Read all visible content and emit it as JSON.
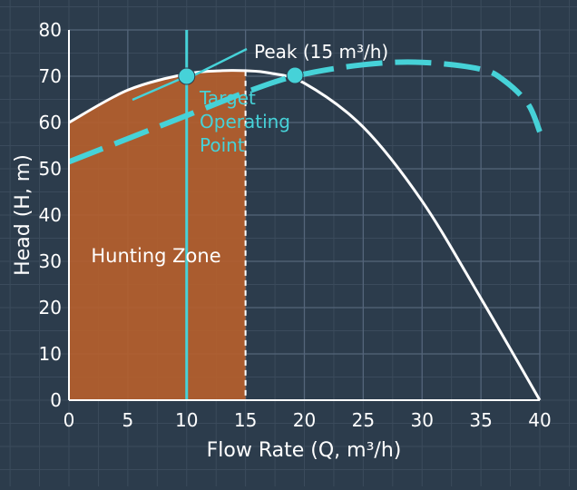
{
  "chart_data": {
    "type": "line",
    "xlabel": "Flow Rate (Q, m³/h)",
    "ylabel": "Head (H, m)",
    "xlim": [
      0,
      40
    ],
    "ylim": [
      0,
      80
    ],
    "x_ticks": [
      0,
      5,
      10,
      15,
      20,
      25,
      30,
      35,
      40
    ],
    "y_ticks": [
      0,
      10,
      20,
      30,
      40,
      50,
      60,
      70,
      80
    ],
    "grid": true,
    "colors": {
      "background": "#2c3c4c",
      "grid_major": "#54657a",
      "grid_minor": "#3b4b5c",
      "pump_curve": "#ffffff",
      "system_curve": "#46d2d8",
      "zone_fill": "#b5602c",
      "target_line": "#46d2d8"
    },
    "series": [
      {
        "style": "solid",
        "x": [
          0,
          5,
          10,
          13,
          15,
          17,
          20,
          25,
          30,
          35,
          40
        ],
        "y": [
          60,
          67,
          70.5,
          71.2,
          71.2,
          70.7,
          68.5,
          59,
          43,
          22,
          0
        ]
      },
      {
        "style": "dashed",
        "x": [
          0,
          5,
          10,
          15,
          19.2,
          25,
          30,
          35,
          37,
          39,
          40
        ],
        "y": [
          51.5,
          56.5,
          61.5,
          66.5,
          70,
          72.5,
          73,
          71.5,
          69,
          64,
          58
        ]
      }
    ],
    "target_line_x": 10,
    "markers": [
      {
        "x": 10,
        "y": 70
      },
      {
        "x": 19.2,
        "y": 70.2
      }
    ],
    "zone": {
      "x_start": 0,
      "x_end": 15,
      "label": "Hunting Zone"
    },
    "boundary_line_x": 15,
    "annotations": {
      "peak": "Peak (15 m³/h)",
      "target": [
        "Target",
        "Operating",
        "Point"
      ]
    }
  }
}
